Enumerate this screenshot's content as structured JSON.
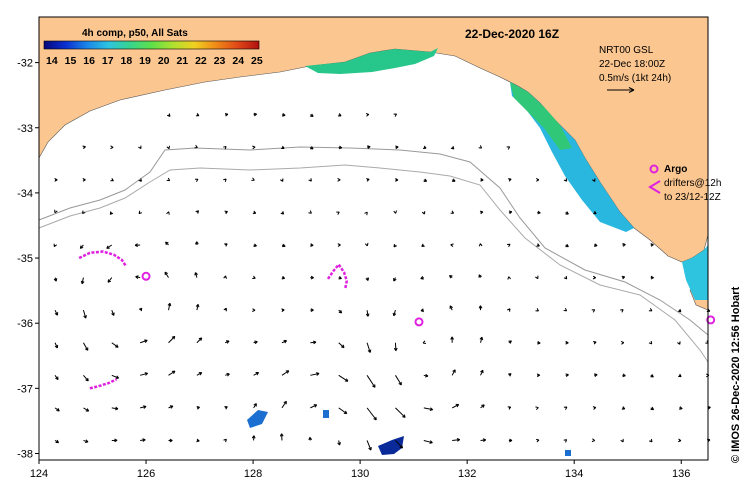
{
  "map": {
    "date_title": "22-Dec-2020 16Z",
    "sst_label": "4h comp, p50, All Sats",
    "colorbar_ticks": [
      "14",
      "15",
      "16",
      "17",
      "18",
      "19",
      "20",
      "21",
      "22",
      "23",
      "24",
      "25"
    ],
    "colorbar_colors": [
      "#08087a",
      "#0a2fd0",
      "#1b86e8",
      "#2ec4e0",
      "#37d48e",
      "#5ee04a",
      "#b0e030",
      "#f0d020",
      "#f08a18",
      "#e04818",
      "#b01010"
    ],
    "current_source": "NRT00 GSL",
    "current_time": "22-Dec 18:00Z",
    "scale_label": "0.5m/s (1kt 24h)",
    "argo_label": "Argo",
    "drifters_line1": "drifters@12h",
    "drifters_line2": "to 23/12-12Z",
    "credit": "© IMOS 26-Dec-2020 12:56 Hobart",
    "x_ticks": [
      "124",
      "126",
      "128",
      "130",
      "132",
      "134",
      "136"
    ],
    "y_ticks": [
      "-32",
      "-33",
      "-34",
      "-35",
      "-36",
      "-37",
      "-38"
    ],
    "lon_range": [
      124,
      136.5
    ],
    "lat_range": [
      -38.1,
      -31.3
    ],
    "land_color": "#fbc690",
    "argo_color": "#e020e0",
    "argo_floats": [
      [
        126,
        -35.28
      ],
      [
        131.1,
        -35.98
      ],
      [
        136.55,
        -35.95
      ]
    ],
    "drifter_tracks": [
      [
        [
          124.75,
          -35.0
        ],
        [
          124.95,
          -34.92
        ],
        [
          125.2,
          -34.9
        ],
        [
          125.4,
          -34.95
        ],
        [
          125.55,
          -35.03
        ],
        [
          125.62,
          -35.12
        ]
      ],
      [
        [
          129.4,
          -35.32
        ],
        [
          129.5,
          -35.2
        ],
        [
          129.6,
          -35.1
        ],
        [
          129.7,
          -35.22
        ],
        [
          129.75,
          -35.35
        ],
        [
          129.72,
          -35.48
        ]
      ],
      [
        [
          124.95,
          -37.0
        ],
        [
          125.1,
          -36.97
        ],
        [
          125.3,
          -36.92
        ],
        [
          125.45,
          -36.86
        ]
      ]
    ]
  }
}
